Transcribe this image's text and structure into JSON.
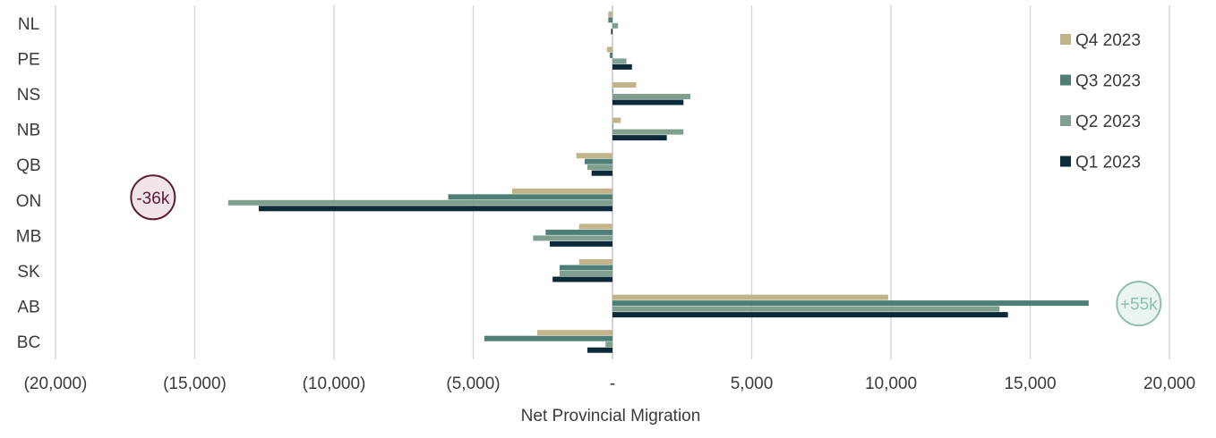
{
  "chart_data": {
    "type": "bar",
    "orientation": "horizontal",
    "title": "",
    "xlabel": "Net Provincial Migration",
    "ylabel": "",
    "xlim": [
      -20000,
      20000
    ],
    "x_ticks": [
      {
        "value": -20000,
        "label": "(20,000)"
      },
      {
        "value": -15000,
        "label": "(15,000)"
      },
      {
        "value": -10000,
        "label": "(10,000)"
      },
      {
        "value": -5000,
        "label": "(5,000)"
      },
      {
        "value": 0,
        "label": "-"
      },
      {
        "value": 5000,
        "label": "5,000"
      },
      {
        "value": 10000,
        "label": "10,000"
      },
      {
        "value": 15000,
        "label": "15,000"
      },
      {
        "value": 20000,
        "label": "20,000"
      }
    ],
    "grid": true,
    "legend_position": "top-right",
    "categories": [
      "NL",
      "PE",
      "NS",
      "NB",
      "QB",
      "ON",
      "MB",
      "SK",
      "AB",
      "BC"
    ],
    "series": [
      {
        "name": "Q4 2023",
        "color": "#c2b48a",
        "values": [
          -150,
          -200,
          850,
          300,
          -1300,
          -3600,
          -1200,
          -1200,
          9900,
          -2700
        ]
      },
      {
        "name": "Q3 2023",
        "color": "#4e7f76",
        "values": [
          -150,
          -100,
          0,
          0,
          -1000,
          -5900,
          -2400,
          -1900,
          17100,
          -4600
        ]
      },
      {
        "name": "Q2 2023",
        "color": "#7fa08e",
        "values": [
          200,
          500,
          2800,
          2550,
          -900,
          -13800,
          -2850,
          -1900,
          13900,
          -250
        ]
      },
      {
        "name": "Q1 2023",
        "color": "#0d2a3a",
        "values": [
          -50,
          700,
          2550,
          1950,
          -750,
          -12700,
          -2250,
          -2150,
          14200,
          -900
        ]
      }
    ],
    "annotations": [
      {
        "text": "-36k",
        "category": "ON",
        "x": -16500,
        "border": "#5c1a33",
        "fill": "#f1e4ea",
        "text_color": "#5c1a33"
      },
      {
        "text": "+55k",
        "category": "AB",
        "x": 18900,
        "border": "#8fbfb0",
        "fill": "#eaf4f0",
        "text_color": "#8fbfb0"
      }
    ]
  }
}
